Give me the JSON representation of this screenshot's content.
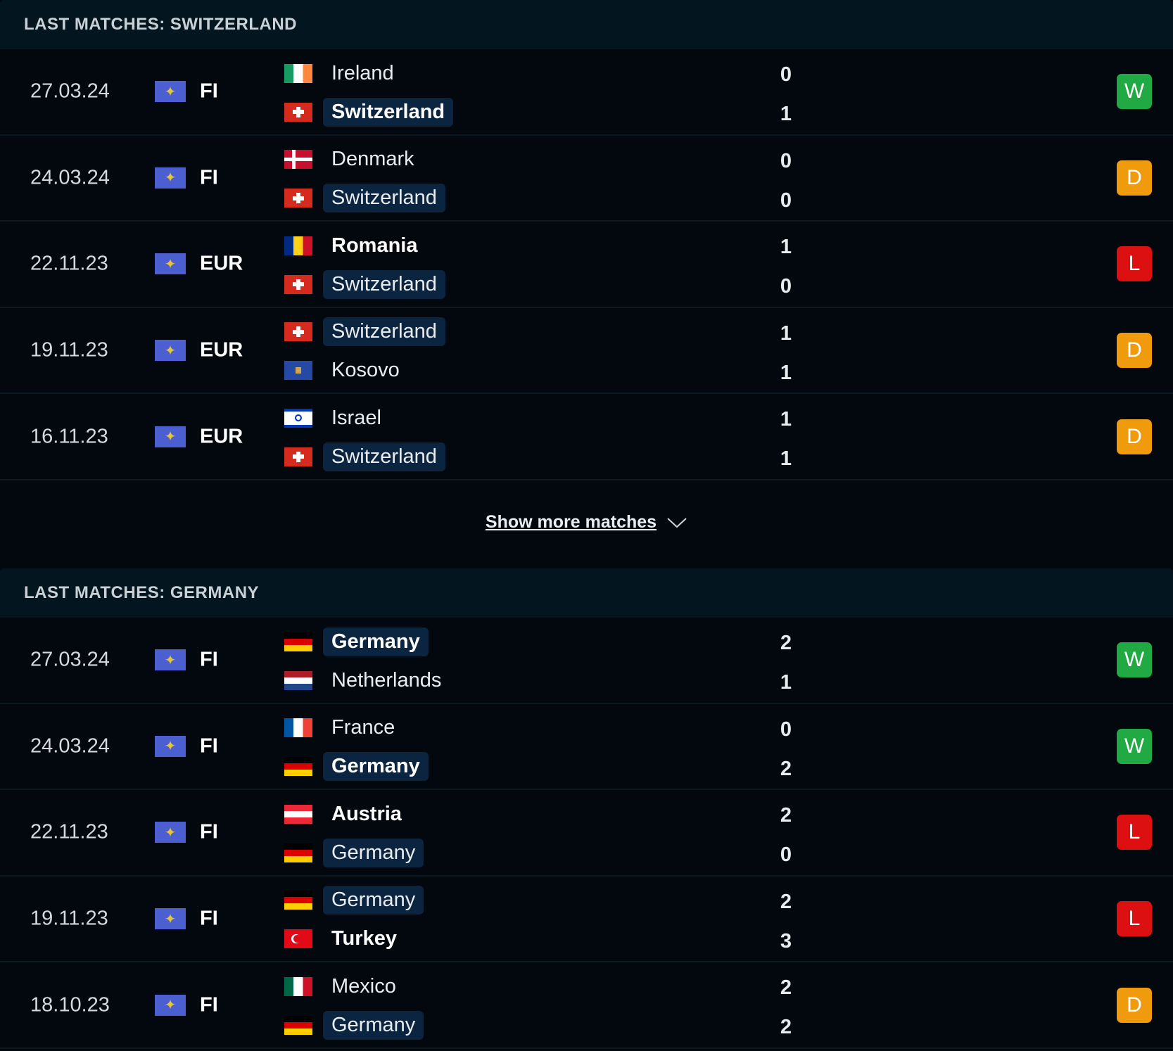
{
  "colors": {
    "W": "#21a943",
    "D": "#f09a0e",
    "L": "#dc1010"
  },
  "sections": [
    {
      "title": "LAST MATCHES: SWITZERLAND",
      "show_more": "Show more matches",
      "matches": [
        {
          "date": "27.03.24",
          "comp": "FI",
          "home": {
            "name": "Ireland",
            "flag": "ireland",
            "score": "0"
          },
          "away": {
            "name": "Switzerland",
            "flag": "switzerland",
            "score": "1",
            "highlight": true,
            "winner": true
          },
          "result": "W"
        },
        {
          "date": "24.03.24",
          "comp": "FI",
          "home": {
            "name": "Denmark",
            "flag": "denmark",
            "score": "0"
          },
          "away": {
            "name": "Switzerland",
            "flag": "switzerland",
            "score": "0",
            "highlight": true
          },
          "result": "D"
        },
        {
          "date": "22.11.23",
          "comp": "EUR",
          "home": {
            "name": "Romania",
            "flag": "romania",
            "score": "1",
            "winner": true
          },
          "away": {
            "name": "Switzerland",
            "flag": "switzerland",
            "score": "0",
            "highlight": true
          },
          "result": "L"
        },
        {
          "date": "19.11.23",
          "comp": "EUR",
          "home": {
            "name": "Switzerland",
            "flag": "switzerland",
            "score": "1",
            "highlight": true
          },
          "away": {
            "name": "Kosovo",
            "flag": "kosovo",
            "score": "1"
          },
          "result": "D"
        },
        {
          "date": "16.11.23",
          "comp": "EUR",
          "home": {
            "name": "Israel",
            "flag": "israel",
            "score": "1"
          },
          "away": {
            "name": "Switzerland",
            "flag": "switzerland",
            "score": "1",
            "highlight": true
          },
          "result": "D"
        }
      ]
    },
    {
      "title": "LAST MATCHES: GERMANY",
      "matches": [
        {
          "date": "27.03.24",
          "comp": "FI",
          "home": {
            "name": "Germany",
            "flag": "germany",
            "score": "2",
            "highlight": true,
            "winner": true
          },
          "away": {
            "name": "Netherlands",
            "flag": "netherlands",
            "score": "1"
          },
          "result": "W"
        },
        {
          "date": "24.03.24",
          "comp": "FI",
          "home": {
            "name": "France",
            "flag": "france",
            "score": "0"
          },
          "away": {
            "name": "Germany",
            "flag": "germany",
            "score": "2",
            "highlight": true,
            "winner": true
          },
          "result": "W"
        },
        {
          "date": "22.11.23",
          "comp": "FI",
          "home": {
            "name": "Austria",
            "flag": "austria",
            "score": "2",
            "winner": true
          },
          "away": {
            "name": "Germany",
            "flag": "germany",
            "score": "0",
            "highlight": true
          },
          "result": "L"
        },
        {
          "date": "19.11.23",
          "comp": "FI",
          "home": {
            "name": "Germany",
            "flag": "germany",
            "score": "2",
            "highlight": true
          },
          "away": {
            "name": "Turkey",
            "flag": "turkey",
            "score": "3",
            "winner": true
          },
          "result": "L"
        },
        {
          "date": "18.10.23",
          "comp": "FI",
          "home": {
            "name": "Mexico",
            "flag": "mexico",
            "score": "2"
          },
          "away": {
            "name": "Germany",
            "flag": "germany",
            "score": "2",
            "highlight": true
          },
          "result": "D"
        }
      ]
    }
  ]
}
